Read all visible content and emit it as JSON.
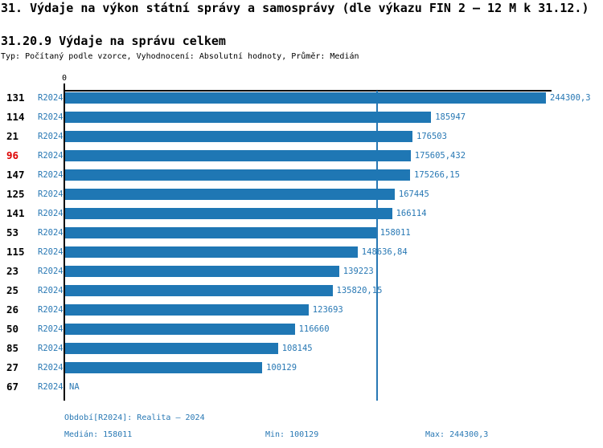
{
  "page": {
    "title": "31. Výdaje na výkon státní správy a samosprávy (dle výkazu FIN 2 – 12 M k 31.12.)",
    "subtitle": "31.20.9 Výdaje na správu celkem",
    "type_line": "Typ: Počítaný podle vzorce, Vyhodnocení: Absolutní hodnoty, Průměr: Medián"
  },
  "chart_data": {
    "type": "bar",
    "orientation": "horizontal",
    "title": "31.20.9 Výdaje na správu celkem",
    "x_axis": {
      "zero_label": "0",
      "min": 0,
      "max": 244300.3,
      "gridlines": false
    },
    "median_value": 158011,
    "median_line_shown": true,
    "legend_position": "none",
    "categories": [
      "131",
      "114",
      "21",
      "96",
      "147",
      "125",
      "141",
      "53",
      "115",
      "23",
      "25",
      "26",
      "50",
      "85",
      "27",
      "67"
    ],
    "series": [
      {
        "name": "R2024",
        "values": [
          244300.3,
          185947,
          176503,
          175605.432,
          175266.15,
          167445,
          166114,
          158011,
          148636.84,
          139223,
          135820.15,
          123693,
          116660,
          108145,
          100129,
          null
        ]
      }
    ],
    "rows": [
      {
        "rank": "131",
        "period": "R2024",
        "value": 244300.3,
        "value_label": "244300,3",
        "highlight": false
      },
      {
        "rank": "114",
        "period": "R2024",
        "value": 185947,
        "value_label": "185947",
        "highlight": false
      },
      {
        "rank": "21",
        "period": "R2024",
        "value": 176503,
        "value_label": "176503",
        "highlight": false
      },
      {
        "rank": "96",
        "period": "R2024",
        "value": 175605.432,
        "value_label": "175605,432",
        "highlight": true
      },
      {
        "rank": "147",
        "period": "R2024",
        "value": 175266.15,
        "value_label": "175266,15",
        "highlight": false
      },
      {
        "rank": "125",
        "period": "R2024",
        "value": 167445,
        "value_label": "167445",
        "highlight": false
      },
      {
        "rank": "141",
        "period": "R2024",
        "value": 166114,
        "value_label": "166114",
        "highlight": false
      },
      {
        "rank": "53",
        "period": "R2024",
        "value": 158011,
        "value_label": "158011",
        "highlight": false
      },
      {
        "rank": "115",
        "period": "R2024",
        "value": 148636.84,
        "value_label": "148636,84",
        "highlight": false
      },
      {
        "rank": "23",
        "period": "R2024",
        "value": 139223,
        "value_label": "139223",
        "highlight": false
      },
      {
        "rank": "25",
        "period": "R2024",
        "value": 135820.15,
        "value_label": "135820,15",
        "highlight": false
      },
      {
        "rank": "26",
        "period": "R2024",
        "value": 123693,
        "value_label": "123693",
        "highlight": false
      },
      {
        "rank": "50",
        "period": "R2024",
        "value": 116660,
        "value_label": "116660",
        "highlight": false
      },
      {
        "rank": "85",
        "period": "R2024",
        "value": 108145,
        "value_label": "108145",
        "highlight": false
      },
      {
        "rank": "27",
        "period": "R2024",
        "value": 100129,
        "value_label": "100129",
        "highlight": false
      },
      {
        "rank": "67",
        "period": "R2024",
        "value": null,
        "value_label": "NA",
        "highlight": false
      }
    ]
  },
  "footer": {
    "period": "Období[R2024]: Realita – 2024",
    "median": "Medián: 158011",
    "min": "Min: 100129",
    "max": "Max: 244300,3"
  },
  "colors": {
    "bar": "#1f77b4",
    "blue_text": "#2878b4",
    "highlight": "#dd0000",
    "axis": "#000000"
  }
}
